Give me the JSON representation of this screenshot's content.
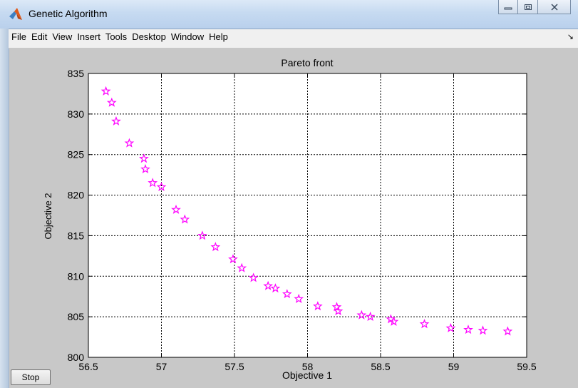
{
  "window": {
    "title": "Genetic Algorithm",
    "controls": [
      "minimize",
      "maximize",
      "close"
    ]
  },
  "menu": {
    "items": [
      "File",
      "Edit",
      "View",
      "Insert",
      "Tools",
      "Desktop",
      "Window",
      "Help"
    ],
    "dock_glyph": "↘"
  },
  "buttons": {
    "stop_label": "Stop"
  },
  "colors": {
    "marker": "#ff00ff",
    "axes_background": "#ffffff",
    "figure_background": "#c8c8c8"
  },
  "chart_data": {
    "type": "scatter",
    "title": "Pareto front",
    "xlabel": "Objective 1",
    "ylabel": "Objective 2",
    "xlim": [
      56.5,
      59.5
    ],
    "ylim": [
      800,
      835
    ],
    "xticks": [
      "56.5",
      "57",
      "57.5",
      "58",
      "58.5",
      "59",
      "59.5"
    ],
    "yticks": [
      "800",
      "805",
      "810",
      "815",
      "820",
      "825",
      "830",
      "835"
    ],
    "grid": true,
    "marker": "pentagram",
    "series": [
      {
        "points": [
          [
            56.62,
            832.8
          ],
          [
            56.66,
            831.4
          ],
          [
            56.69,
            829.1
          ],
          [
            56.78,
            826.4
          ],
          [
            56.88,
            824.5
          ],
          [
            56.89,
            823.2
          ],
          [
            56.94,
            821.5
          ],
          [
            57.0,
            821.0
          ],
          [
            57.1,
            818.2
          ],
          [
            57.16,
            817.0
          ],
          [
            57.28,
            815.0
          ],
          [
            57.37,
            813.6
          ],
          [
            57.49,
            812.1
          ],
          [
            57.55,
            811.0
          ],
          [
            57.63,
            809.8
          ],
          [
            57.73,
            808.8
          ],
          [
            57.78,
            808.5
          ],
          [
            57.86,
            807.8
          ],
          [
            57.94,
            807.2
          ],
          [
            58.07,
            806.3
          ],
          [
            58.2,
            806.2
          ],
          [
            58.21,
            805.7
          ],
          [
            58.37,
            805.2
          ],
          [
            58.43,
            805.0
          ],
          [
            58.57,
            804.7
          ],
          [
            58.59,
            804.4
          ],
          [
            58.8,
            804.1
          ],
          [
            58.98,
            803.6
          ],
          [
            59.1,
            803.4
          ],
          [
            59.2,
            803.3
          ],
          [
            59.37,
            803.2
          ]
        ]
      }
    ]
  }
}
